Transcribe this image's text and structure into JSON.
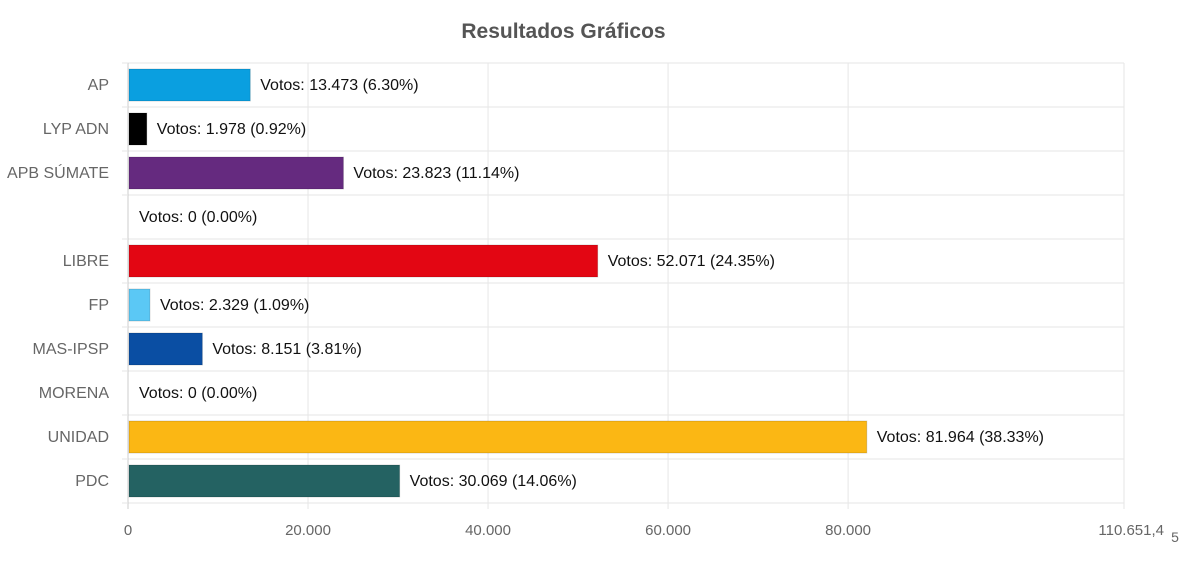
{
  "chart_data": {
    "type": "bar",
    "orientation": "horizontal",
    "title": "Resultados Gráficos",
    "categories": [
      "AP",
      "LYP ADN",
      "APB SÚMATE",
      "",
      "LIBRE",
      "FP",
      "MAS-IPSP",
      "MORENA",
      "UNIDAD",
      "PDC"
    ],
    "values": [
      13473,
      1978,
      23823,
      0,
      52071,
      2329,
      8151,
      0,
      81964,
      30069
    ],
    "data_labels": [
      "Votos: 13.473 (6.30%)",
      "Votos: 1.978 (0.92%)",
      "Votos: 23.823 (11.14%)",
      "Votos: 0 (0.00%)",
      "Votos: 52.071 (24.35%)",
      "Votos: 2.329 (1.09%)",
      "Votos: 8.151 (3.81%)",
      "Votos: 0 (0.00%)",
      "Votos: 81.964 (38.33%)",
      "Votos: 30.069 (14.06%)"
    ],
    "colors": [
      "#0a9fe0",
      "#000000",
      "#652a7f",
      "#cccccc",
      "#e30613",
      "#5bc8f5",
      "#0a4ea3",
      "#7a1a1a",
      "#fbb714",
      "#246262"
    ],
    "xlim": [
      0,
      110651.45
    ],
    "x_ticks": [
      0,
      20000,
      40000,
      60000,
      80000,
      110651.45
    ],
    "x_tick_labels": [
      "0",
      "20.000",
      "40.000",
      "60.000",
      "80.000",
      "110.651,4"
    ],
    "grid": true,
    "xlabel": "",
    "ylabel": ""
  },
  "overflow_fragment": "5"
}
